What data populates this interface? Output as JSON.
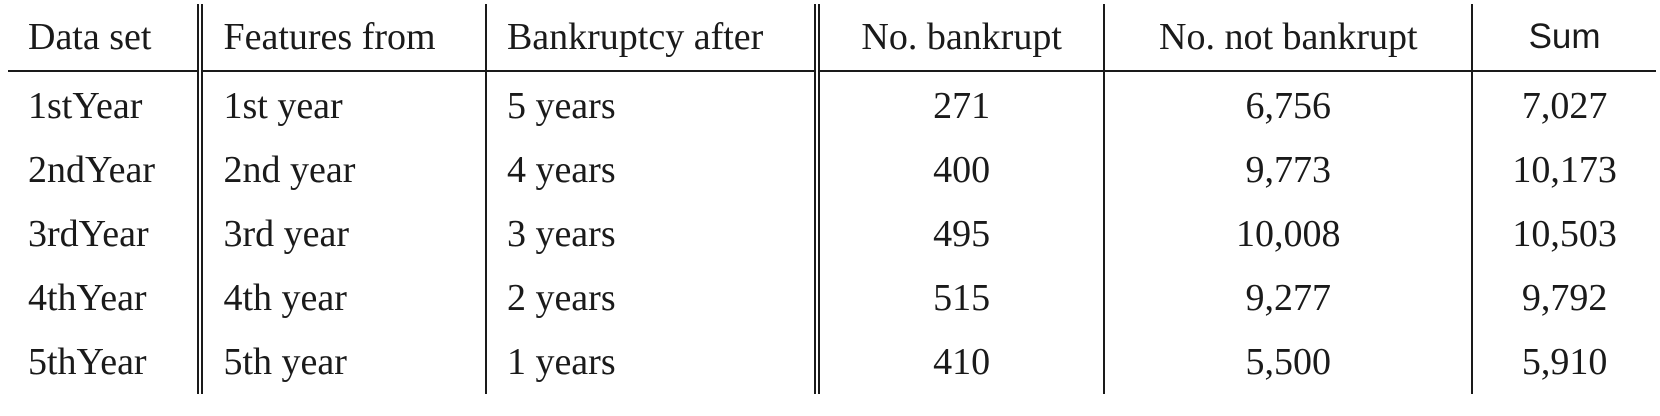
{
  "table": {
    "headers": [
      "Data set",
      "Features from",
      "Bankruptcy after",
      "No. bankrupt",
      "No. not bankrupt",
      "Sum"
    ],
    "rows": [
      [
        "1stYear",
        "1st year",
        "5 years",
        "271",
        "6,756",
        "7,027"
      ],
      [
        "2ndYear",
        "2nd year",
        "4 years",
        "400",
        "9,773",
        "10,173"
      ],
      [
        "3rdYear",
        "3rd year",
        "3 years",
        "495",
        "10,008",
        "10,503"
      ],
      [
        "4thYear",
        "4th year",
        "2 years",
        "515",
        "9,277",
        "9,792"
      ],
      [
        "5thYear",
        "5th year",
        "1 years",
        "410",
        "5,500",
        "5,910"
      ]
    ]
  }
}
